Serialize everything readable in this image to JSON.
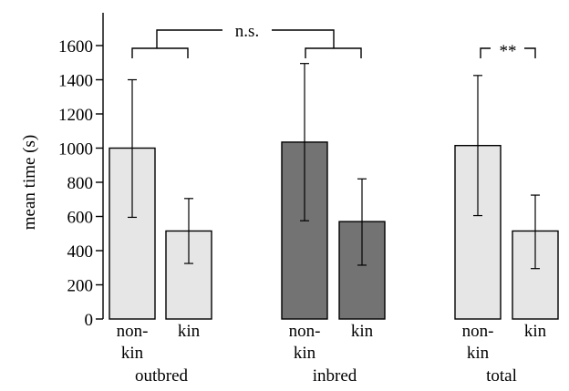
{
  "chart_data": {
    "type": "bar",
    "title": "",
    "xlabel": "",
    "ylabel": "mean time (s)",
    "ylim": [
      0,
      1800
    ],
    "yticks": [
      0,
      200,
      400,
      600,
      800,
      1000,
      1200,
      1400,
      1600
    ],
    "grid": false,
    "groups": [
      {
        "label": "outbred",
        "bars": [
          {
            "label_lines": [
              "non-",
              "kin"
            ],
            "value": 1000,
            "err_low": 595,
            "err_high": 1400,
            "color": "#e6e6e6"
          },
          {
            "label_lines": [
              "kin"
            ],
            "value": 515,
            "err_low": 325,
            "err_high": 705,
            "color": "#e6e6e6"
          }
        ]
      },
      {
        "label": "inbred",
        "bars": [
          {
            "label_lines": [
              "non-",
              "kin"
            ],
            "value": 1035,
            "err_low": 575,
            "err_high": 1495,
            "color": "#737373"
          },
          {
            "label_lines": [
              "kin"
            ],
            "value": 570,
            "err_low": 315,
            "err_high": 820,
            "color": "#737373"
          }
        ]
      },
      {
        "label": "total",
        "bars": [
          {
            "label_lines": [
              "non-",
              "kin"
            ],
            "value": 1015,
            "err_low": 605,
            "err_high": 1425,
            "color": "#e6e6e6"
          },
          {
            "label_lines": [
              "kin"
            ],
            "value": 515,
            "err_low": 295,
            "err_high": 725,
            "color": "#e6e6e6"
          }
        ]
      }
    ],
    "annotations": {
      "ns_label": "n.s.",
      "sig_label": "**"
    }
  }
}
